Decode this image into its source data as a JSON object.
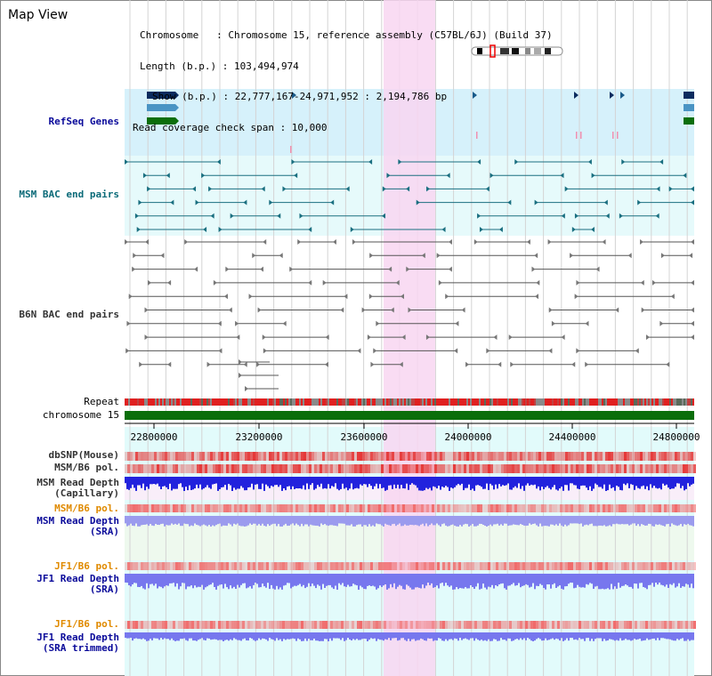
{
  "panel_title": "Map View",
  "info": {
    "chromosome": "Chromosome   : Chromosome 15, reference assembly (C57BL/6J) (Build 37)",
    "length": "Length (b.p.) : 103,494,974",
    "show": "Show (b.p.) : 22,777,167-24,971,952 : 2,194,786 bp",
    "coverage": "Read coverage check span : 10,000"
  },
  "tracks": {
    "refseq": "RefSeq Genes",
    "msm_bac": "MSM BAC end pairs",
    "b6n_bac": "B6N BAC end pairs",
    "repeat": "Repeat",
    "chromosome": "chromosome 15",
    "dbsnp": "dbSNP(Mouse)",
    "msm_pol": "MSM/B6 pol.",
    "msm_depth_cap_1": "MSM Read Depth",
    "msm_depth_cap_2": "(Capillary)",
    "msm_pol_2": "MSM/B6 pol.",
    "msm_depth_sra_1": "MSM Read Depth",
    "msm_depth_sra_2": "(SRA)",
    "jf1_pol": "JF1/B6 pol.",
    "jf1_depth_1": "JF1 Read Depth",
    "jf1_depth_2": "(SRA)",
    "jf1_pol_2": "JF1/B6 pol.",
    "jf1_trim_1": "JF1 Read Depth",
    "jf1_trim_2": "(SRA trimmed)"
  },
  "axis": {
    "ticks": [
      "22800000",
      "23200000",
      "23600000",
      "24000000",
      "24400000",
      "24800000"
    ]
  },
  "colors": {
    "refseq_bg": "#d6f1fb",
    "bac_bg": "#e6fafb",
    "highlight": "#f8d6f1",
    "chrom": "#0b6e0b",
    "depth_msm": "#2222dd",
    "depth_sra": "#9b9bee",
    "depth_jf1": "#7777ee"
  }
}
